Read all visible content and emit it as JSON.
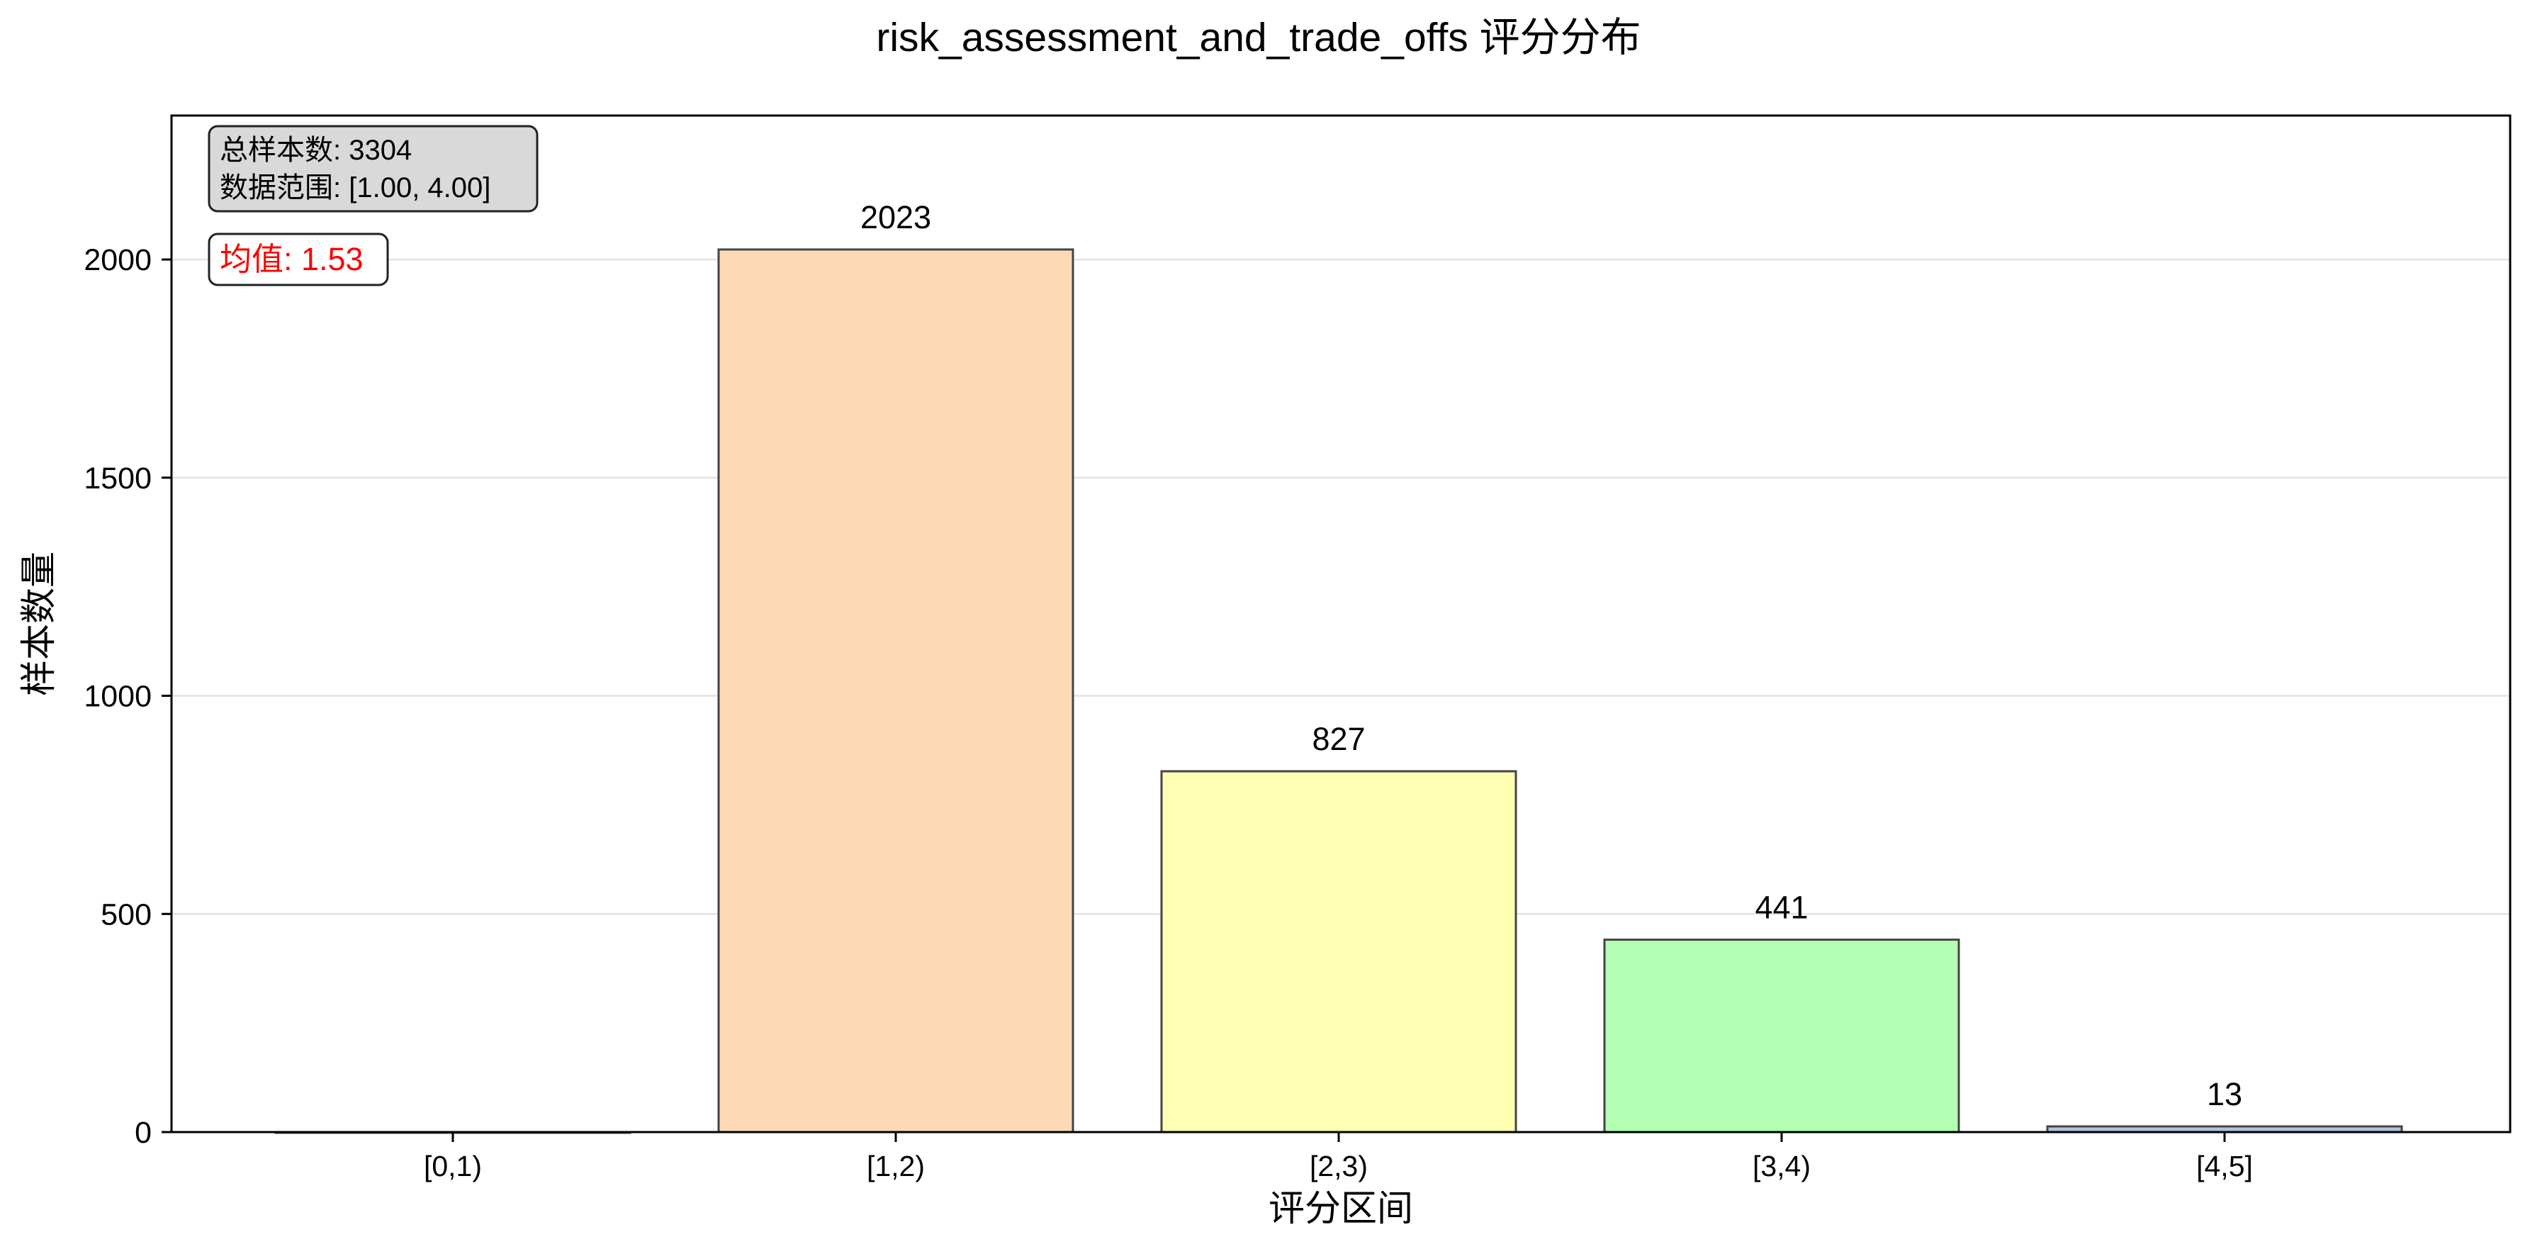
{
  "chart_data": {
    "type": "bar",
    "title": "risk_assessment_and_trade_offs 评分分布",
    "xlabel": "评分区间",
    "ylabel": "样本数量",
    "categories": [
      "[0,1)",
      "[1,2)",
      "[2,3)",
      "[3,4)",
      "[4,5]"
    ],
    "values": [
      0,
      2023,
      827,
      441,
      13
    ],
    "data_labels": [
      "",
      "2023",
      "827",
      "441",
      "13"
    ],
    "bar_colors": [
      "#c6d9ef",
      "#fdd9b5",
      "#ffffb3",
      "#b4ffb4",
      "#b0c4de"
    ],
    "ylim": [
      0,
      2330
    ],
    "yticks": [
      0,
      500,
      1000,
      1500,
      2000
    ],
    "ytick_labels": [
      "0",
      "500",
      "1000",
      "1500",
      "2000"
    ],
    "grid": "horizontal",
    "info_box": {
      "total_label": "总样本数: 3304",
      "range_label": "数据范围: [1.00, 4.00]"
    },
    "mean_label": "均值: 1.53",
    "mean_color": "#ff0000"
  }
}
